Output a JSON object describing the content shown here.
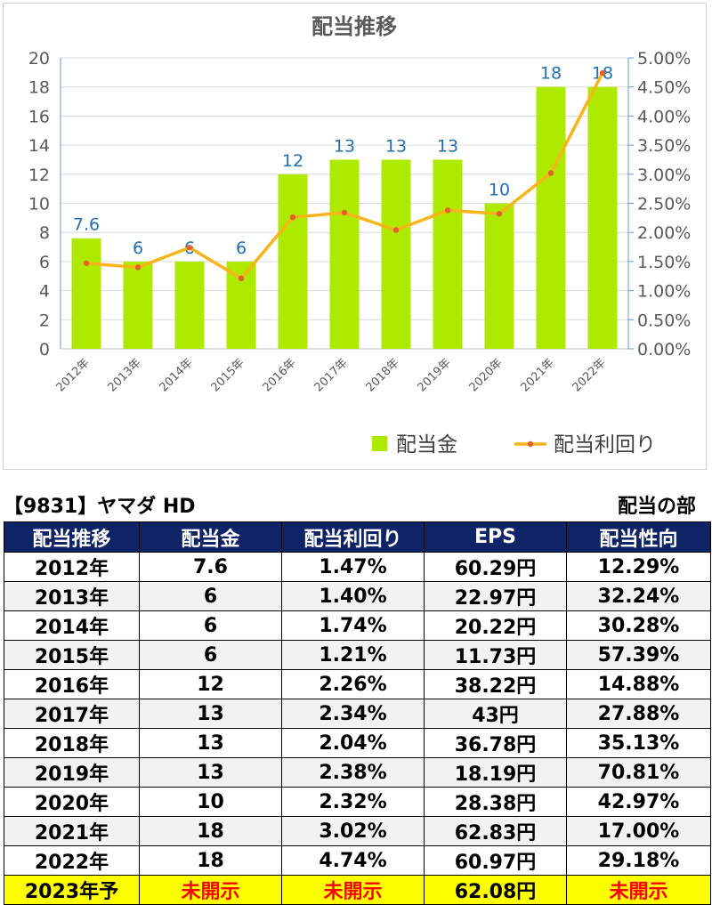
{
  "chart_data": {
    "type": "bar+line",
    "title": "配当推移",
    "categories": [
      "2012年",
      "2013年",
      "2014年",
      "2015年",
      "2016年",
      "2017年",
      "2018年",
      "2019年",
      "2020年",
      "2021年",
      "2022年"
    ],
    "series": [
      {
        "name": "配当金",
        "type": "bar",
        "axis": "left",
        "values": [
          7.6,
          6,
          6,
          6,
          12,
          13,
          13,
          13,
          10,
          18,
          18
        ],
        "data_labels": [
          "7.6",
          "6",
          "6",
          "6",
          "12",
          "13",
          "13",
          "13",
          "10",
          "18",
          "18"
        ]
      },
      {
        "name": "配当利回り",
        "type": "line",
        "axis": "right",
        "values": [
          1.47,
          1.4,
          1.74,
          1.21,
          2.26,
          2.34,
          2.04,
          2.38,
          2.32,
          3.02,
          4.74
        ]
      }
    ],
    "y_left": {
      "min": 0,
      "max": 20,
      "step": 2,
      "ticks": [
        "0",
        "2",
        "4",
        "6",
        "8",
        "10",
        "12",
        "14",
        "16",
        "18",
        "20"
      ]
    },
    "y_right": {
      "min": 0,
      "max": 5,
      "step": 0.5,
      "ticks": [
        "0.00%",
        "0.50%",
        "1.00%",
        "1.50%",
        "2.00%",
        "2.50%",
        "3.00%",
        "3.50%",
        "4.00%",
        "4.50%",
        "5.00%"
      ]
    },
    "grid": true,
    "legend": "bottom-right"
  },
  "colors": {
    "bar": "#aeea00",
    "line": "#f9b41a",
    "marker": "#e2622b",
    "data_label": "#1f6fb8",
    "grid": "#d9d9d9",
    "header_bg": "#0f2367",
    "forecast_bg": "#ffff00",
    "forecast_text": "#ff0000"
  },
  "company_label": "【9831】ヤマダ HD",
  "section_label": "配当の部",
  "table": {
    "headers": [
      "配当推移",
      "配当金",
      "配当利回り",
      "EPS",
      "配当性向"
    ],
    "rows": [
      [
        "2012年",
        "7.6",
        "1.47%",
        "60.29円",
        "12.29%"
      ],
      [
        "2013年",
        "6",
        "1.40%",
        "22.97円",
        "32.24%"
      ],
      [
        "2014年",
        "6",
        "1.74%",
        "20.22円",
        "30.28%"
      ],
      [
        "2015年",
        "6",
        "1.21%",
        "11.73円",
        "57.39%"
      ],
      [
        "2016年",
        "12",
        "2.26%",
        "38.22円",
        "14.88%"
      ],
      [
        "2017年",
        "13",
        "2.34%",
        "43円",
        "27.88%"
      ],
      [
        "2018年",
        "13",
        "2.04%",
        "36.78円",
        "35.13%"
      ],
      [
        "2019年",
        "13",
        "2.38%",
        "18.19円",
        "70.81%"
      ],
      [
        "2020年",
        "10",
        "2.32%",
        "28.38円",
        "42.97%"
      ],
      [
        "2021年",
        "18",
        "3.02%",
        "62.83円",
        "17.00%"
      ],
      [
        "2022年",
        "18",
        "4.74%",
        "60.97円",
        "29.18%"
      ]
    ],
    "forecast_row": [
      "2023年予",
      "未開示",
      "未開示",
      "62.08円",
      "未開示"
    ]
  }
}
